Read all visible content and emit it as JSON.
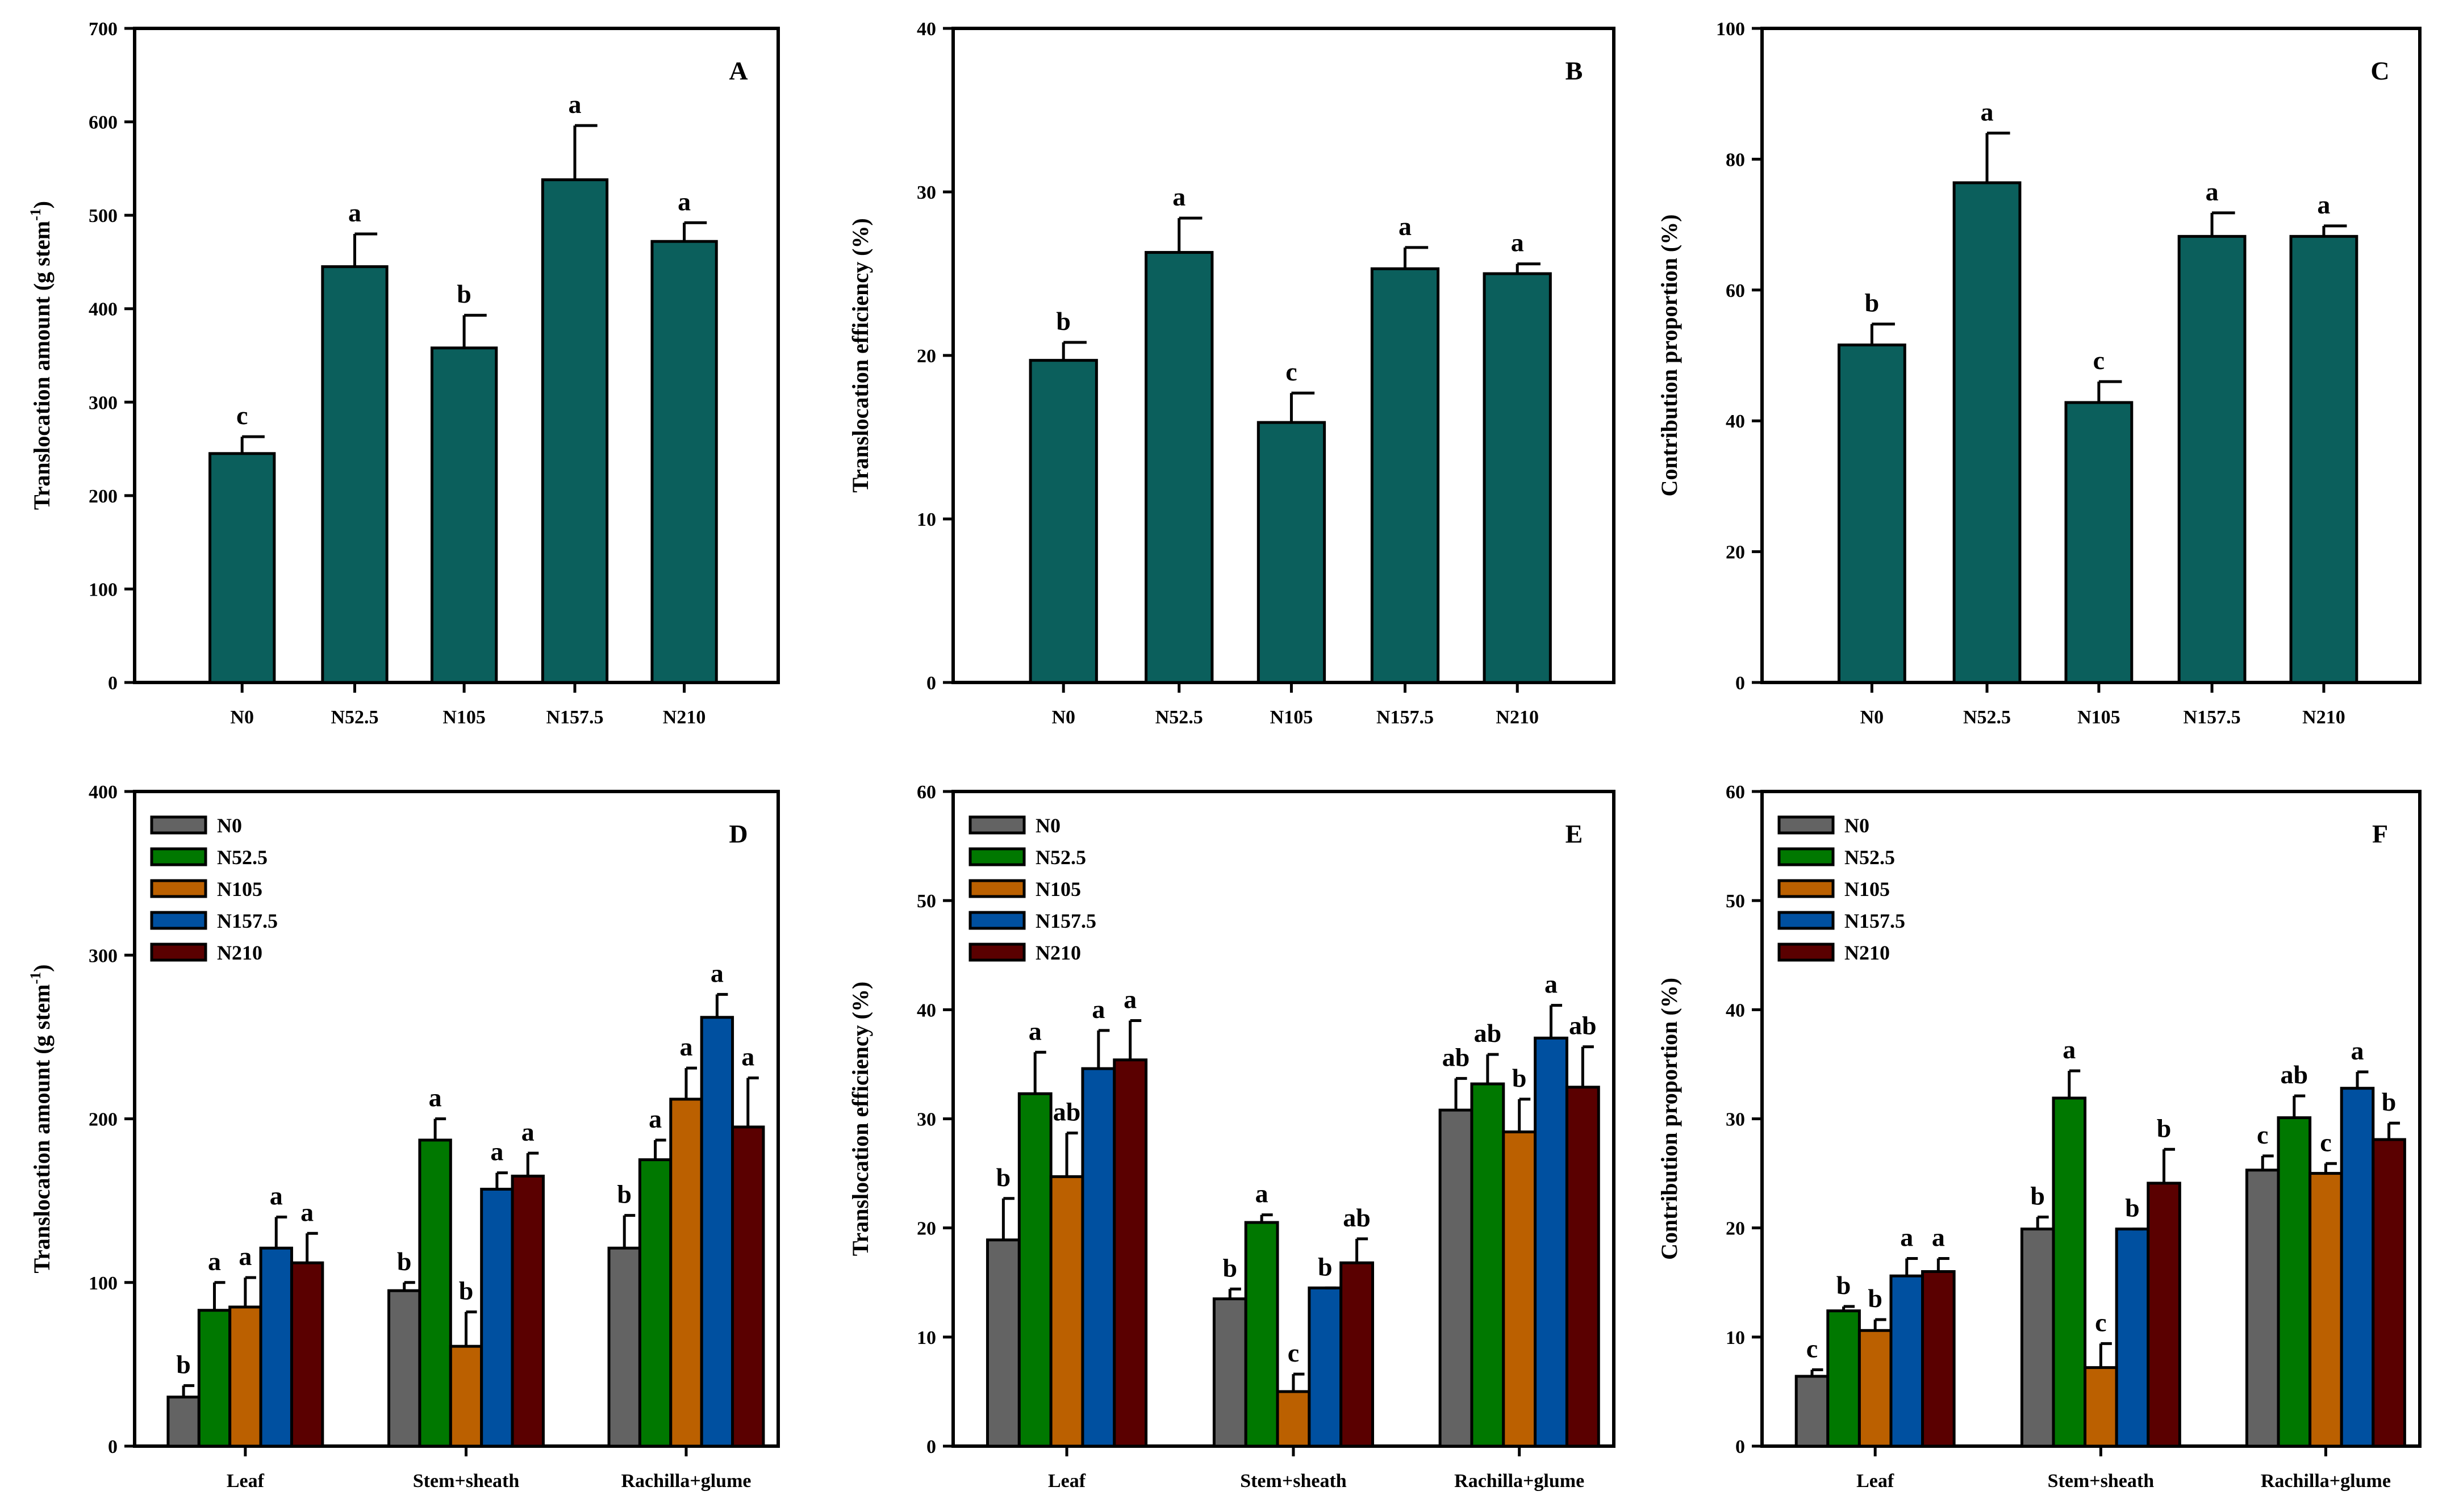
{
  "colors": {
    "single": "#0b5f5c",
    "series": [
      "#636363",
      "#007800",
      "#bb6000",
      "#0050a0",
      "#5a0000"
    ]
  },
  "chart_data": [
    {
      "panel": "A",
      "type": "bar",
      "ylabel": "Translocation amount (g stem",
      "ylabel_sup": "-1",
      "ylabel_close": ")",
      "ylim": [
        0,
        700
      ],
      "yticks": [
        0,
        100,
        200,
        300,
        400,
        500,
        600,
        700
      ],
      "categories": [
        "N0",
        "N52.5",
        "N105",
        "N157.5",
        "N210"
      ],
      "values": [
        245,
        445,
        358,
        538,
        472
      ],
      "errors": [
        18,
        35,
        35,
        58,
        20
      ],
      "letters": [
        "c",
        "a",
        "b",
        "a",
        "a"
      ]
    },
    {
      "panel": "B",
      "type": "bar",
      "ylabel": "Translocation efficiency (%)",
      "ylim": [
        0,
        40
      ],
      "yticks": [
        0,
        10,
        20,
        30,
        40
      ],
      "categories": [
        "N0",
        "N52.5",
        "N105",
        "N157.5",
        "N210"
      ],
      "values": [
        19.7,
        26.3,
        15.9,
        25.3,
        25.0
      ],
      "errors": [
        1.1,
        2.1,
        1.8,
        1.3,
        0.6
      ],
      "letters": [
        "b",
        "a",
        "c",
        "a",
        "a"
      ]
    },
    {
      "panel": "C",
      "type": "bar",
      "ylabel": "Contribution proportion (%)",
      "ylim": [
        0,
        100
      ],
      "yticks": [
        0,
        20,
        40,
        60,
        80,
        100
      ],
      "categories": [
        "N0",
        "N52.5",
        "N105",
        "N157.5",
        "N210"
      ],
      "values": [
        51.6,
        76.4,
        42.8,
        68.2,
        68.2
      ],
      "errors": [
        3.2,
        7.6,
        3.2,
        3.6,
        1.6
      ],
      "letters": [
        "b",
        "a",
        "c",
        "a",
        "a"
      ]
    },
    {
      "panel": "D",
      "type": "bar",
      "ylabel": "Translocation amount (g stem",
      "ylabel_sup": "-1",
      "ylabel_close": ")",
      "ylim": [
        0,
        400
      ],
      "yticks": [
        0,
        100,
        200,
        300,
        400
      ],
      "categories": [
        "Leaf",
        "Stem+sheath",
        "Rachilla+glume"
      ],
      "legend": "top-left",
      "series": [
        {
          "name": "N0",
          "values": [
            30,
            95,
            121
          ],
          "errors": [
            7,
            5,
            20
          ],
          "letters": [
            "b",
            "b",
            "b"
          ]
        },
        {
          "name": "N52.5",
          "values": [
            83,
            187,
            175
          ],
          "errors": [
            17,
            13,
            12
          ],
          "letters": [
            "a",
            "a",
            "a"
          ]
        },
        {
          "name": "N105",
          "values": [
            85,
            61,
            212
          ],
          "errors": [
            18,
            21,
            19
          ],
          "letters": [
            "a",
            "b",
            "a"
          ]
        },
        {
          "name": "N157.5",
          "values": [
            121,
            157,
            262
          ],
          "errors": [
            19,
            10,
            14
          ],
          "letters": [
            "a",
            "a",
            "a"
          ]
        },
        {
          "name": "N210",
          "values": [
            112,
            165,
            195
          ],
          "errors": [
            18,
            14,
            30
          ],
          "letters": [
            "a",
            "a",
            "a"
          ]
        }
      ]
    },
    {
      "panel": "E",
      "type": "bar",
      "ylabel": "Translocation efficiency (%)",
      "ylim": [
        0,
        60
      ],
      "yticks": [
        0,
        10,
        20,
        30,
        40,
        50,
        60
      ],
      "categories": [
        "Leaf",
        "Stem+sheath",
        "Rachilla+glume"
      ],
      "legend": "top-left",
      "series": [
        {
          "name": "N0",
          "values": [
            18.9,
            13.5,
            30.8
          ],
          "errors": [
            3.8,
            0.9,
            2.9
          ],
          "letters": [
            "b",
            "b",
            "ab"
          ]
        },
        {
          "name": "N52.5",
          "values": [
            32.3,
            20.5,
            33.2
          ],
          "errors": [
            3.8,
            0.7,
            2.7
          ],
          "letters": [
            "a",
            "a",
            "ab"
          ]
        },
        {
          "name": "N105",
          "values": [
            24.7,
            5.0,
            28.8
          ],
          "errors": [
            4.0,
            1.6,
            3.0
          ],
          "letters": [
            "ab",
            "c",
            "b"
          ]
        },
        {
          "name": "N157.5",
          "values": [
            34.6,
            14.5,
            37.4
          ],
          "errors": [
            3.5,
            0,
            3.0
          ],
          "letters": [
            "a",
            "b",
            "a"
          ]
        },
        {
          "name": "N210",
          "values": [
            35.4,
            16.8,
            32.9
          ],
          "errors": [
            3.6,
            2.2,
            3.7
          ],
          "letters": [
            "a",
            "ab",
            "ab"
          ]
        }
      ]
    },
    {
      "panel": "F",
      "type": "bar",
      "ylabel": "Contribution proportion (%)",
      "ylim": [
        0,
        60
      ],
      "yticks": [
        0,
        10,
        20,
        30,
        40,
        50,
        60
      ],
      "categories": [
        "Leaf",
        "Stem+sheath",
        "Rachilla+glume"
      ],
      "legend": "top-left",
      "series": [
        {
          "name": "N0",
          "values": [
            6.4,
            19.9,
            25.3
          ],
          "errors": [
            0.6,
            1.1,
            1.3
          ],
          "letters": [
            "c",
            "b",
            "c"
          ]
        },
        {
          "name": "N52.5",
          "values": [
            12.4,
            31.9,
            30.1
          ],
          "errors": [
            0.4,
            2.5,
            2.0
          ],
          "letters": [
            "b",
            "a",
            "ab"
          ]
        },
        {
          "name": "N105",
          "values": [
            10.6,
            7.2,
            25.0
          ],
          "errors": [
            1.0,
            2.2,
            0.9
          ],
          "letters": [
            "b",
            "c",
            "c"
          ]
        },
        {
          "name": "N157.5",
          "values": [
            15.6,
            19.9,
            32.8
          ],
          "errors": [
            1.6,
            0,
            1.5
          ],
          "letters": [
            "a",
            "b",
            "a"
          ]
        },
        {
          "name": "N210",
          "values": [
            16.0,
            24.1,
            28.1
          ],
          "errors": [
            1.2,
            3.1,
            1.5
          ],
          "letters": [
            "a",
            "b",
            "b"
          ]
        }
      ]
    }
  ]
}
